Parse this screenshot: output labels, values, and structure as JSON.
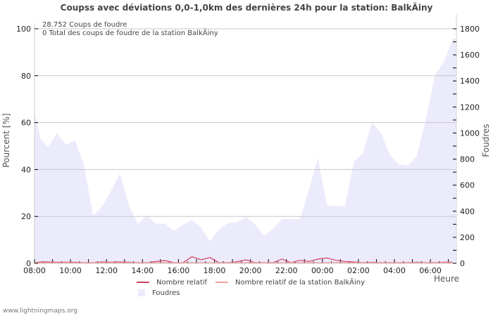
{
  "title": "Coupss avec déviations 0,0-1,0km des dernières 24h pour la station: BalkÃiny",
  "info": {
    "line1": "28.752  Coups de foudre",
    "line2": "0 Total des coups de foudre de la station BalkÃiny"
  },
  "footer": "www.lightningmaps.org",
  "xlabel": "Heure",
  "colors": {
    "area": "#ebebfc",
    "relative": "#d04060",
    "relative_station": "#f0a0a0",
    "grid": "#c8c8c8"
  },
  "legend": [
    {
      "label": "Nombre relatif",
      "type": "line",
      "color": "#d04060"
    },
    {
      "label": "Nombre relatif de la station BalkÃiny",
      "type": "line",
      "color": "#f0a0a0"
    },
    {
      "label": "Foudres",
      "type": "box",
      "color": "#ebebfc"
    }
  ],
  "chart_data": {
    "type": "area",
    "title": "Coupss avec déviations 0,0-1,0km des dernières 24h pour la station: BalkÃiny",
    "xlabel": "Heure",
    "ylabel": "Pourcent   [%]",
    "ylabel_right": "Foudres",
    "ylim": [
      0,
      100
    ],
    "ylim_right": [
      0,
      1800
    ],
    "yticks": [
      0,
      20,
      40,
      60,
      80,
      100
    ],
    "yticks_right": [
      0,
      200,
      400,
      600,
      800,
      1000,
      1200,
      1400,
      1600,
      1800
    ],
    "xticks": [
      "08:00",
      "10:00",
      "12:00",
      "14:00",
      "16:00",
      "18:00",
      "20:00",
      "22:00",
      "00:00",
      "02:00",
      "04:00",
      "06:00"
    ],
    "grid": true,
    "legend_position": "bottom",
    "x": [
      "08:00",
      "08:20",
      "08:45",
      "09:15",
      "09:45",
      "10:15",
      "10:45",
      "11:15",
      "11:45",
      "12:15",
      "12:45",
      "13:15",
      "13:45",
      "14:15",
      "14:45",
      "15:15",
      "15:45",
      "16:15",
      "16:45",
      "17:15",
      "17:45",
      "18:15",
      "18:45",
      "19:15",
      "19:45",
      "20:15",
      "20:45",
      "21:15",
      "21:45",
      "22:15",
      "22:45",
      "23:15",
      "23:45",
      "00:15",
      "00:45",
      "01:15",
      "01:45",
      "02:15",
      "02:45",
      "03:15",
      "03:45",
      "04:15",
      "04:45",
      "05:15",
      "05:45",
      "06:15",
      "06:45",
      "07:15"
    ],
    "series": [
      {
        "name": "Foudres",
        "axis": "right",
        "type": "area",
        "values": [
          1160,
          955,
          890,
          1000,
          910,
          945,
          755,
          365,
          435,
          555,
          690,
          445,
          305,
          365,
          305,
          305,
          250,
          295,
          335,
          275,
          170,
          260,
          310,
          315,
          355,
          300,
          210,
          265,
          340,
          340,
          340,
          565,
          810,
          445,
          440,
          435,
          780,
          845,
          1080,
          1000,
          835,
          760,
          750,
          825,
          1105,
          1445,
          1545,
          1725
        ]
      },
      {
        "name": "Nombre relatif",
        "axis": "left",
        "type": "line",
        "values": [
          0,
          0.3,
          0.3,
          0.2,
          0.2,
          0.2,
          0,
          0,
          0.3,
          0.2,
          0.3,
          0.2,
          0,
          0,
          0.5,
          0.9,
          0,
          0,
          2.5,
          1.2,
          2.2,
          0,
          0,
          0.4,
          1.2,
          0,
          0,
          0,
          1.5,
          0,
          1,
          0.5,
          1.5,
          2,
          1,
          0.5,
          0.3,
          0,
          0.2,
          0,
          0,
          0,
          0,
          0.2,
          0,
          0,
          0.2,
          0.2
        ]
      },
      {
        "name": "Nombre relatif de la station BalkÃiny",
        "axis": "left",
        "type": "line",
        "values": [
          0,
          0,
          0,
          0,
          0,
          0,
          0,
          0,
          0,
          0,
          0,
          0,
          0,
          0,
          0,
          0,
          0,
          0,
          0,
          0,
          0,
          0,
          0,
          0,
          0,
          0,
          0,
          0,
          0,
          0,
          0,
          0,
          0,
          0,
          0,
          0,
          0,
          0,
          0,
          0,
          0,
          0,
          0,
          0,
          0,
          0,
          0,
          0
        ]
      }
    ]
  }
}
